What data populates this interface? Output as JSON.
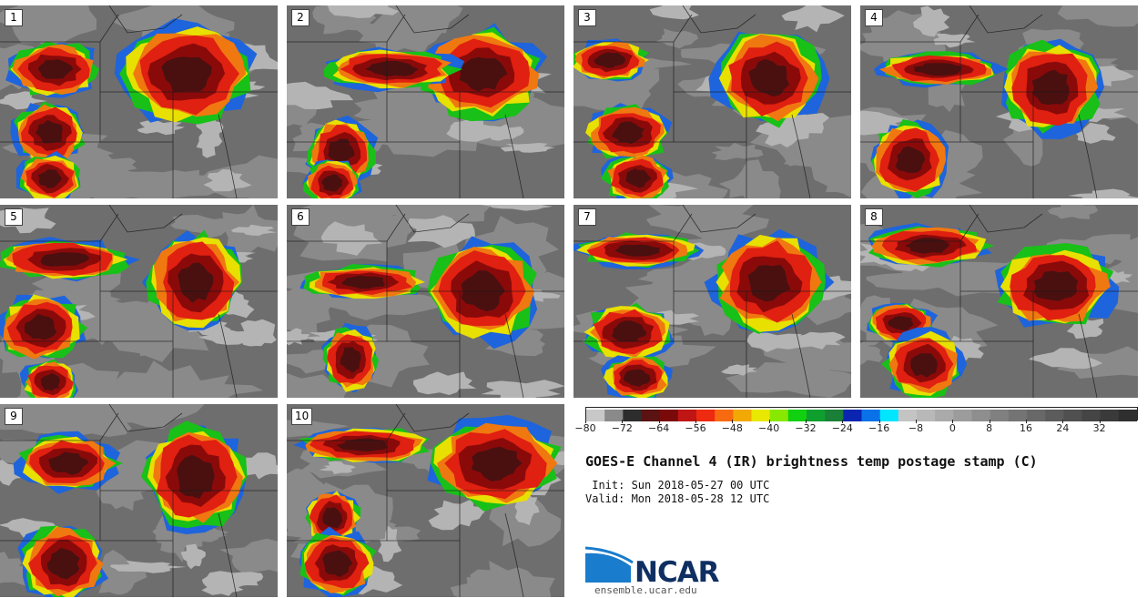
{
  "title": "GOES-E Channel 4 (IR) brightness temp postage stamp (C)",
  "init_text": " Init: Sun 2018-05-27 00 UTC",
  "valid_text": "Valid: Mon 2018-05-28 12 UTC",
  "logo_name": "NCAR",
  "website": "ensemble.ucar.edu",
  "panels": [
    {
      "label": "1"
    },
    {
      "label": "2"
    },
    {
      "label": "3"
    },
    {
      "label": "4"
    },
    {
      "label": "5"
    },
    {
      "label": "6"
    },
    {
      "label": "7"
    },
    {
      "label": "8"
    },
    {
      "label": "9"
    },
    {
      "label": "10"
    }
  ],
  "colorbar": {
    "min": -80,
    "max": 40,
    "tick_labels": [
      "−80",
      "−72",
      "−64",
      "−56",
      "−48",
      "−40",
      "−32",
      "−24",
      "−16",
      "−8",
      "0",
      "8",
      "16",
      "24",
      "32"
    ],
    "tick_values": [
      -80,
      -72,
      -64,
      -56,
      -48,
      -40,
      -32,
      -24,
      -16,
      -8,
      0,
      8,
      16,
      24,
      32
    ],
    "colors": [
      "#c8c8c8",
      "#8a8a8a",
      "#2d2d2d",
      "#5a1212",
      "#7a0a0a",
      "#c01515",
      "#ee2a10",
      "#f86a10",
      "#f2a805",
      "#e8e800",
      "#88e800",
      "#10d010",
      "#0f9f2f",
      "#1a8038",
      "#0a26b0",
      "#0a72e8",
      "#00e6ff",
      "#c4c4c4",
      "#b8b8b8",
      "#aaaaaa",
      "#9c9c9c",
      "#8e8e8e",
      "#808080",
      "#747474",
      "#686868",
      "#5c5c5c",
      "#505050",
      "#454545",
      "#3a3a3a",
      "#2f2f2f"
    ]
  }
}
